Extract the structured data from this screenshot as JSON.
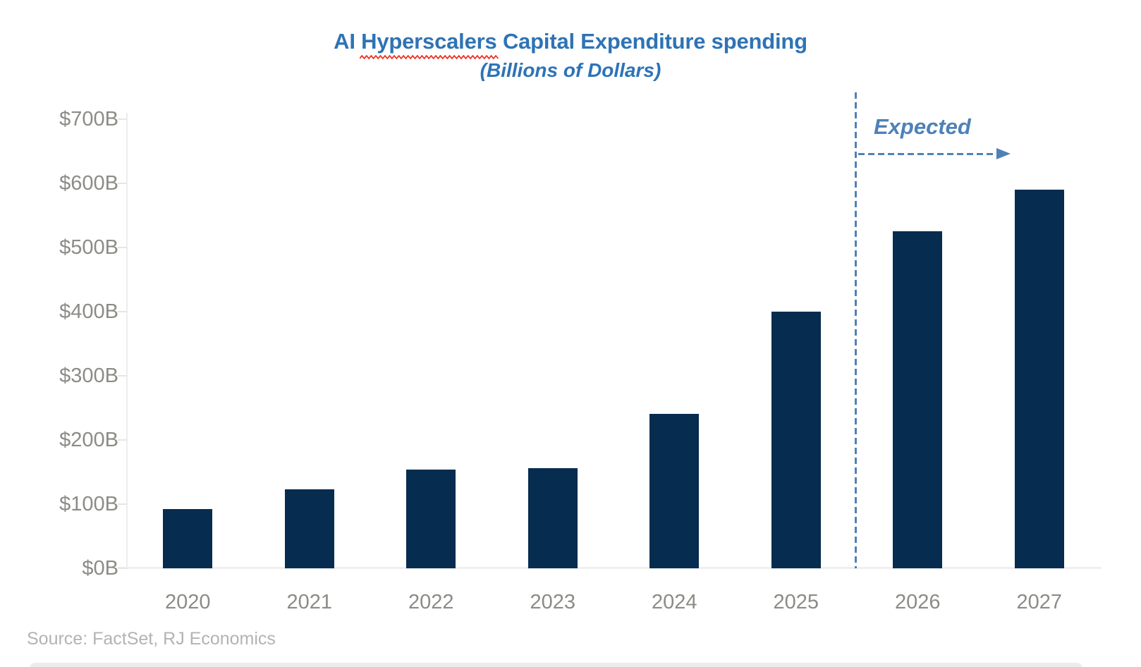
{
  "header": {
    "title_pre": "AI ",
    "title_misspelled": "Hyperscalers",
    "title_post": " Capital Expenditure spending",
    "subtitle": "(Billions of Dollars)"
  },
  "annotation": {
    "expected_label": "Expected"
  },
  "footer": {
    "source": "Source: FactSet, RJ Economics"
  },
  "colors": {
    "bar": "#062C4F",
    "title_blue": "#2E73B5",
    "annotation_blue": "#4F81B7",
    "axis_label_gray": "#8C8B86",
    "source_gray": "#B3B3B3",
    "spellcheck_red": "#F02B1D"
  },
  "chart_data": {
    "type": "bar",
    "title": "AI Hyperscalers Capital Expenditure spending",
    "subtitle": "(Billions of Dollars)",
    "categories": [
      "2020",
      "2021",
      "2022",
      "2023",
      "2024",
      "2025",
      "2026",
      "2027"
    ],
    "values": [
      92,
      123,
      154,
      156,
      241,
      400,
      525,
      590
    ],
    "units": "Billions of Dollars",
    "xlabel": "",
    "ylabel": "",
    "ylim": [
      0,
      700
    ],
    "y_ticks": [
      "$0B",
      "$100B",
      "$200B",
      "$300B",
      "$400B",
      "$500B",
      "$600B",
      "$700B"
    ],
    "grid": false,
    "legend": "none",
    "bar_color": "#062C4F",
    "expected_divider_after_category": "2025",
    "expected_annotation": "Expected"
  }
}
